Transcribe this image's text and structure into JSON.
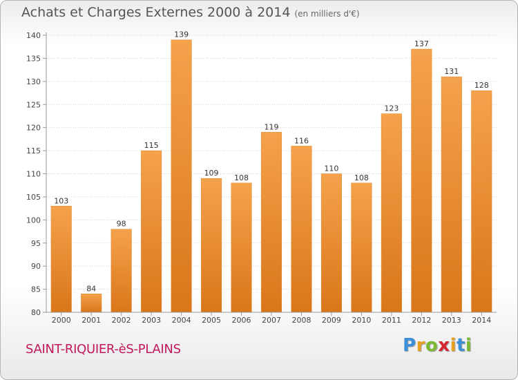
{
  "header": {
    "title": "Achats et Charges Externes 2000 à 2014",
    "unit": "(en milliers d'€)"
  },
  "footer": {
    "city": "SAINT-RIQUIER-èS-PLAINS",
    "logo_letters": [
      "P",
      "r",
      "o",
      "x",
      "i",
      "t",
      "i"
    ],
    "logo_colors": [
      "#3a8fd6",
      "#e8a020",
      "#7cb932",
      "#d8262e",
      "#e8a020",
      "#3a8fd6",
      "#7cb932"
    ]
  },
  "chart_data": {
    "type": "bar",
    "title": "Achats et Charges Externes 2000 à 2014",
    "subtitle": "(en milliers d'€)",
    "categories": [
      "2000",
      "2001",
      "2002",
      "2003",
      "2004",
      "2005",
      "2006",
      "2007",
      "2008",
      "2009",
      "2010",
      "2011",
      "2012",
      "2013",
      "2014"
    ],
    "values": [
      103,
      84,
      98,
      115,
      139,
      109,
      108,
      119,
      116,
      110,
      108,
      123,
      137,
      131,
      128
    ],
    "ylim": [
      80,
      140
    ],
    "yticks": [
      80,
      85,
      90,
      95,
      100,
      105,
      110,
      115,
      120,
      125,
      130,
      135,
      140
    ],
    "grid": true,
    "bar_color_top": "#f5a24c",
    "bar_color_bottom": "#d9761a"
  }
}
